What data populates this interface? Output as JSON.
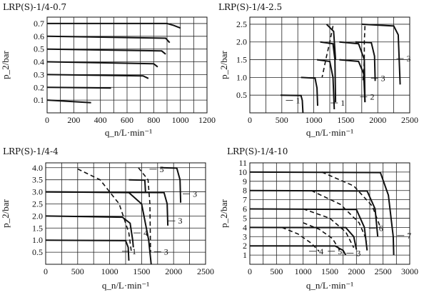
{
  "chart_data": [
    {
      "type": "line",
      "title": "LRP(S)-1/4-0.7",
      "xlabel": "q_n/L·min⁻¹",
      "ylabel": "p_2/bar",
      "xlim": [
        0,
        1200
      ],
      "ylim": [
        0,
        0.75
      ],
      "x_ticks": [
        "0",
        "200",
        "400",
        "600",
        "800",
        "1000",
        "1200"
      ],
      "y_ticks": [
        "0.1",
        "0.2",
        "0.3",
        "0.4",
        "0.5",
        "0.6",
        "0.7"
      ],
      "grid": true,
      "series": [
        {
          "x": [
            0,
            330
          ],
          "y": [
            0.1,
            0.08
          ],
          "style": "solid"
        },
        {
          "x": [
            0,
            480
          ],
          "y": [
            0.2,
            0.195
          ],
          "style": "solid"
        },
        {
          "x": [
            0,
            720,
            760
          ],
          "y": [
            0.3,
            0.29,
            0.27
          ],
          "style": "solid"
        },
        {
          "x": [
            0,
            800,
            830
          ],
          "y": [
            0.4,
            0.385,
            0.36
          ],
          "style": "solid"
        },
        {
          "x": [
            0,
            860,
            890
          ],
          "y": [
            0.5,
            0.485,
            0.46
          ],
          "style": "solid"
        },
        {
          "x": [
            0,
            890,
            920
          ],
          "y": [
            0.6,
            0.585,
            0.55
          ],
          "style": "solid"
        },
        {
          "x": [
            0,
            900,
            950,
            1000
          ],
          "y": [
            0.7,
            0.7,
            0.685,
            0.665
          ],
          "style": "solid"
        }
      ],
      "annotations": []
    },
    {
      "type": "line",
      "title": "LRP(S)-1/4-2.5",
      "xlabel": "q_n/L·min⁻¹",
      "ylabel": "p_2/bar",
      "xlim": [
        0,
        2500
      ],
      "ylim": [
        0,
        2.7
      ],
      "x_ticks": [
        "0",
        "500",
        "1000",
        "1500",
        "2000",
        "2500"
      ],
      "y_ticks": [
        "0.5",
        "1.0",
        "1.5",
        "2.0",
        "2.5"
      ],
      "grid": true,
      "series": [
        {
          "x": [
            480,
            800,
            820,
            830
          ],
          "y": [
            0.5,
            0.49,
            0.35,
            0.0
          ],
          "style": "solid"
        },
        {
          "x": [
            800,
            1020,
            1050,
            1060
          ],
          "y": [
            1.0,
            0.98,
            0.7,
            0.2
          ],
          "style": "solid"
        },
        {
          "x": [
            1050,
            1250,
            1300,
            1320
          ],
          "y": [
            1.5,
            1.45,
            1.0,
            0.1
          ],
          "style": "solid"
        },
        {
          "x": [
            1100,
            1300,
            1330,
            1340
          ],
          "y": [
            2.0,
            1.95,
            1.5,
            0.3
          ],
          "style": "solid"
        },
        {
          "x": [
            1200,
            1310,
            1340
          ],
          "y": [
            2.5,
            2.3,
            1.5
          ],
          "style": "solid"
        },
        {
          "x": [
            1400,
            1700,
            1790,
            1800
          ],
          "y": [
            2.0,
            1.95,
            1.5,
            0.3
          ],
          "style": "solid"
        },
        {
          "x": [
            1400,
            1700,
            1780,
            1800
          ],
          "y": [
            1.5,
            1.45,
            1.1,
            0.3
          ],
          "style": "solid"
        },
        {
          "x": [
            1650,
            1900,
            1950,
            1960
          ],
          "y": [
            2.0,
            1.98,
            1.6,
            0.9
          ],
          "style": "solid"
        },
        {
          "x": [
            1750,
            2250,
            2320,
            2350
          ],
          "y": [
            2.5,
            2.45,
            2.2,
            0.8
          ],
          "style": "solid"
        },
        {
          "x": [
            1300,
            1250,
            1200,
            1130
          ],
          "y": [
            2.45,
            2.0,
            1.6,
            1.0
          ],
          "style": "dashed"
        },
        {
          "x": [
            1800,
            1790,
            1790,
            1770
          ],
          "y": [
            2.45,
            2.0,
            1.5,
            0.9
          ],
          "style": "dashed"
        }
      ],
      "annotations": [
        {
          "text": "1",
          "x": 720,
          "y": 0.27
        },
        {
          "text": "1",
          "x": 1420,
          "y": 0.2
        },
        {
          "text": "2",
          "x": 1880,
          "y": 0.37
        },
        {
          "text": "3",
          "x": 2050,
          "y": 0.9
        },
        {
          "text": "3",
          "x": 2450,
          "y": 1.45
        }
      ]
    },
    {
      "type": "line",
      "title": "LRP(S)-1/4-4",
      "xlabel": "q_n/L·min⁻¹",
      "ylabel": "p_2/bar",
      "xlim": [
        0,
        2500
      ],
      "ylim": [
        0,
        4.2
      ],
      "x_ticks": [
        "0",
        "500",
        "1000",
        "1500",
        "2000",
        "2500"
      ],
      "y_ticks": [
        "0.5",
        "1.0",
        "1.5",
        "2.0",
        "2.5",
        "3.0",
        "3.5",
        "4.0"
      ],
      "grid": true,
      "series": [
        {
          "x": [
            0,
            1250,
            1290,
            1300
          ],
          "y": [
            1.0,
            0.98,
            0.7,
            0.15
          ],
          "style": "solid"
        },
        {
          "x": [
            0,
            1200,
            1320,
            1360,
            1370
          ],
          "y": [
            2.0,
            1.95,
            1.7,
            1.0,
            0.7
          ],
          "style": "solid"
        },
        {
          "x": [
            0,
            1300,
            1500,
            1610,
            1650
          ],
          "y": [
            3.0,
            2.97,
            2.5,
            1.0,
            0.0
          ],
          "style": "solid"
        },
        {
          "x": [
            0,
            1850,
            1900,
            1910
          ],
          "y": [
            3.0,
            2.97,
            2.5,
            1.6
          ],
          "style": "solid"
        },
        {
          "x": [
            1800,
            2050,
            2100,
            2110
          ],
          "y": [
            4.0,
            3.98,
            3.5,
            2.55
          ],
          "style": "solid"
        },
        {
          "x": [
            1300,
            1550,
            1560
          ],
          "y": [
            3.5,
            3.48,
            3.0
          ],
          "style": "solid"
        },
        {
          "x": [
            500,
            850,
            1150,
            1300,
            1340
          ],
          "y": [
            3.95,
            3.5,
            2.5,
            1.3,
            0.5
          ],
          "style": "dashed"
        },
        {
          "x": [
            1450,
            1600,
            1630,
            1640
          ],
          "y": [
            4.0,
            3.5,
            2.5,
            0.5
          ],
          "style": "dashed"
        }
      ],
      "annotations": [
        {
          "text": "5",
          "x": 1780,
          "y": 3.82
        },
        {
          "text": "3",
          "x": 2300,
          "y": 2.8
        },
        {
          "text": "3",
          "x": 2070,
          "y": 1.68
        },
        {
          "text": "4",
          "x": 1530,
          "y": 1.18
        },
        {
          "text": "1",
          "x": 1350,
          "y": 0.42
        },
        {
          "text": "3",
          "x": 1850,
          "y": 0.4
        }
      ]
    },
    {
      "type": "line",
      "title": "LRP(S)-1/4-10",
      "xlabel": "q_n/L·min⁻¹",
      "ylabel": "p_2/bar",
      "xlim": [
        0,
        3000
      ],
      "ylim": [
        0,
        11
      ],
      "x_ticks": [
        "0",
        "500",
        "1000",
        "1500",
        "2000",
        "2500",
        "3000"
      ],
      "y_ticks": [
        "1",
        "2",
        "3",
        "4",
        "5",
        "6",
        "7",
        "8",
        "9",
        "10",
        "11"
      ],
      "grid": true,
      "series": [
        {
          "x": [
            0,
            1600,
            1750,
            1800
          ],
          "y": [
            2.0,
            1.98,
            1.5,
            1.0
          ],
          "style": "solid"
        },
        {
          "x": [
            0,
            1800,
            1950,
            2000
          ],
          "y": [
            4.0,
            3.98,
            3.0,
            1.6
          ],
          "style": "solid"
        },
        {
          "x": [
            0,
            2000,
            2150,
            2200
          ],
          "y": [
            6.0,
            5.95,
            4.0,
            1.5
          ],
          "style": "solid"
        },
        {
          "x": [
            0,
            2200,
            2350,
            2400
          ],
          "y": [
            8.0,
            7.95,
            6.0,
            3.0
          ],
          "style": "solid"
        },
        {
          "x": [
            0,
            2450,
            2600,
            2690,
            2700
          ],
          "y": [
            10.0,
            9.95,
            7.5,
            3.0,
            1.0
          ],
          "style": "solid"
        },
        {
          "x": [
            600,
            900,
            1150,
            1300
          ],
          "y": [
            4.0,
            3.3,
            2.3,
            1.4
          ],
          "style": "dashed"
        },
        {
          "x": [
            1000,
            1300,
            1550,
            1700
          ],
          "y": [
            4.5,
            3.8,
            2.8,
            1.4
          ],
          "style": "dashed"
        },
        {
          "x": [
            1000,
            1500,
            1800,
            1950
          ],
          "y": [
            6.0,
            5.0,
            3.5,
            1.8
          ],
          "style": "dashed"
        },
        {
          "x": [
            1150,
            1700,
            2050,
            2200
          ],
          "y": [
            8.0,
            6.5,
            4.5,
            2.5
          ],
          "style": "dashed"
        },
        {
          "x": [
            1350,
            1950,
            2300,
            2450
          ],
          "y": [
            10.0,
            8.5,
            6.3,
            4.0
          ],
          "style": "dashed"
        }
      ],
      "annotations": [
        {
          "text": "4",
          "x": 1300,
          "y": 1.1
        },
        {
          "text": "5",
          "x": 1650,
          "y": 1.1
        },
        {
          "text": "3",
          "x": 2000,
          "y": 0.9
        },
        {
          "text": "6",
          "x": 2420,
          "y": 3.6
        },
        {
          "text": "7",
          "x": 2950,
          "y": 2.8
        }
      ]
    }
  ]
}
